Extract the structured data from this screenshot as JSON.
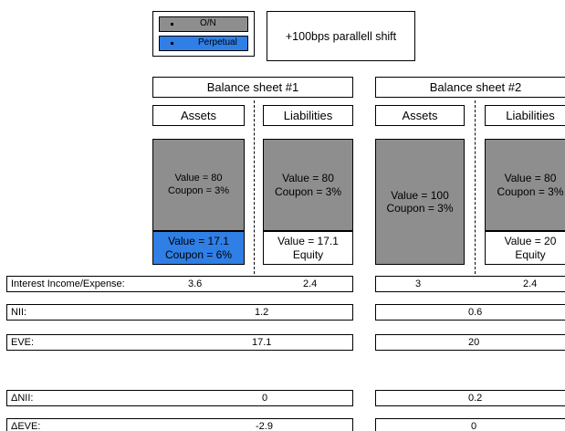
{
  "legend": {
    "on_label": "O/N",
    "perp_label": "Perpetual",
    "on_color": "#8e8e8e",
    "perp_color": "#2f7fe6"
  },
  "shift_label": "+100bps parallell shift",
  "bs1": {
    "title": "Balance sheet #1",
    "assets_label": "Assets",
    "liabilities_label": "Liabilities",
    "asset_on_value": "Value = 80",
    "asset_on_coupon": "Coupon = 3%",
    "asset_perp_value": "Value = 17.1",
    "asset_perp_coupon": "Coupon = 6%",
    "liab_value": "Value = 80",
    "liab_coupon": "Coupon = 3%",
    "equity_value": "Value = 17.1",
    "equity_label": "Equity"
  },
  "bs2": {
    "title": "Balance sheet #2",
    "assets_label": "Assets",
    "liabilities_label": "Liabilities",
    "asset_value": "Value = 100",
    "asset_coupon": "Coupon = 3%",
    "liab_value": "Value = 80",
    "liab_coupon": "Coupon = 3%",
    "equity_value": "Value = 20",
    "equity_label": "Equity"
  },
  "rows": {
    "interest_label": "Interest Income/Expense:",
    "interest_bs1_income": "3.6",
    "interest_bs1_expense": "2.4",
    "interest_bs2_income": "3",
    "interest_bs2_expense": "2.4",
    "nii_label": "NII:",
    "nii_bs1": "1.2",
    "nii_bs2": "0.6",
    "eve_label": "EVE:",
    "eve_bs1": "17.1",
    "eve_bs2": "20",
    "dnii_label": "ΔNII:",
    "dnii_bs1": "0",
    "dnii_bs2": "0.2",
    "deve_label": "ΔEVE:",
    "deve_bs1": "-2.9",
    "deve_bs2": "0"
  }
}
